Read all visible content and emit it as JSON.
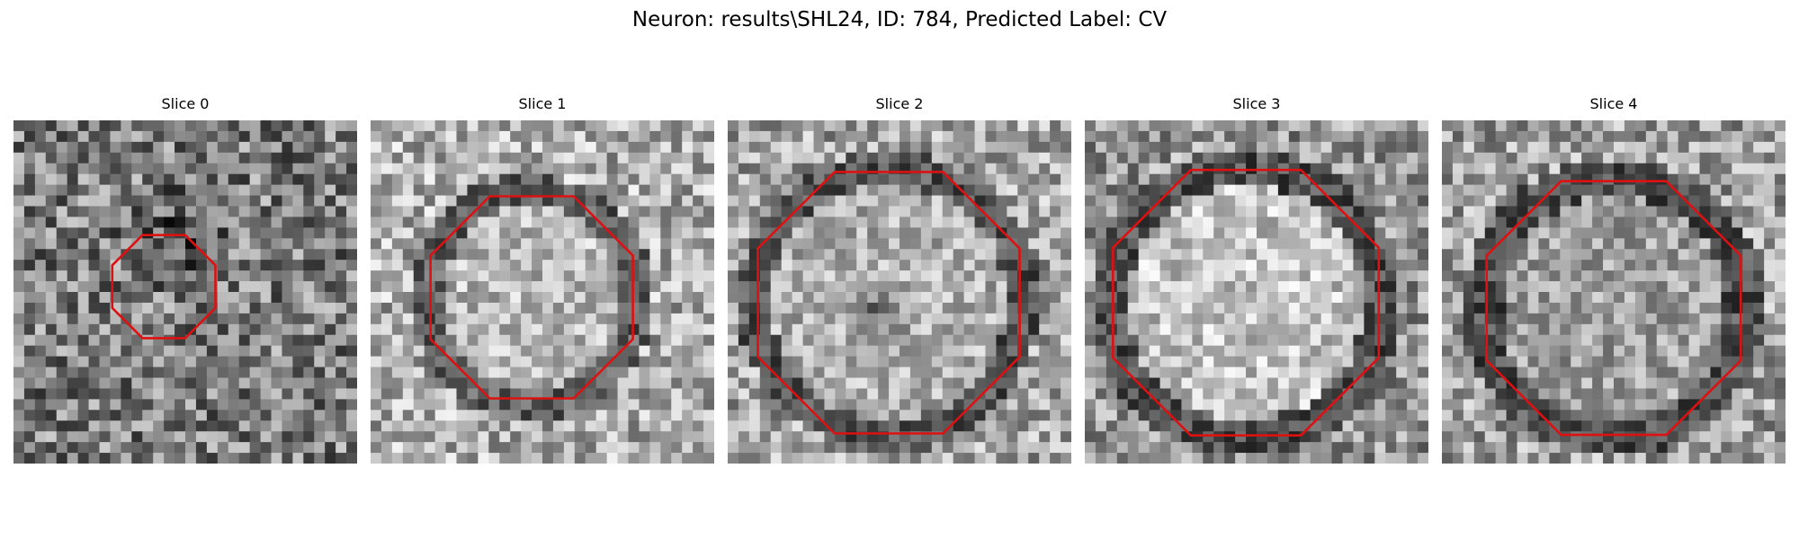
{
  "figure": {
    "title": "Neuron: results\\SHL24, ID: 784, Predicted Label: CV",
    "contour_color": "#dd1111",
    "colormap": "grayscale",
    "panels": [
      {
        "title": "Slice 0",
        "pattern": "dark-noise-with-small-dark-cluster",
        "contour": "small-octagon"
      },
      {
        "title": "Slice 1",
        "pattern": "bright-disc-with-dark-rim",
        "contour": "medium-octagon"
      },
      {
        "title": "Slice 2",
        "pattern": "bright-disc-with-dark-center-blob",
        "contour": "large-octagon"
      },
      {
        "title": "Slice 3",
        "pattern": "bright-disc-with-dark-rim",
        "contour": "large-octagon"
      },
      {
        "title": "Slice 4",
        "pattern": "mid-gray-disc-with-dark-rim",
        "contour": "large-octagon"
      }
    ]
  }
}
